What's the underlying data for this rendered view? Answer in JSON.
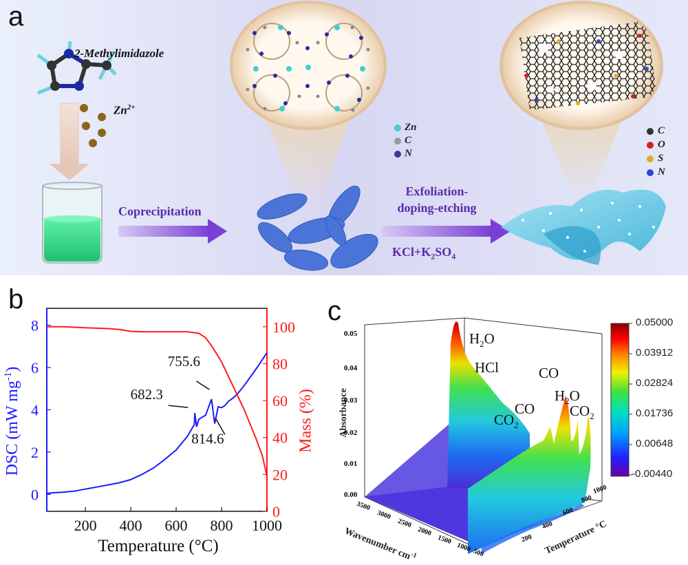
{
  "panel_a": {
    "letter": "a",
    "molecule_label": "2-Methylimidazole",
    "zn_label": "Zn",
    "zn_sup": "2+",
    "step1_label": "Coprecipitation",
    "step2_line1": "Exfoliation-",
    "step2_line2": "doping-etching",
    "salt_label": "KCl+K",
    "salt_sub1": "2",
    "salt_label2": "SO",
    "salt_sub2": "4",
    "zif_legend": [
      {
        "label": "Zn",
        "color": "#3fd0d4"
      },
      {
        "label": "C",
        "color": "#9a9a9a"
      },
      {
        "label": "N",
        "color": "#3a3aa0"
      }
    ],
    "carbon_legend": [
      {
        "label": "C",
        "color": "#333333"
      },
      {
        "label": "O",
        "color": "#d42020"
      },
      {
        "label": "S",
        "color": "#e0b020"
      },
      {
        "label": "N",
        "color": "#2a4ad0"
      }
    ]
  },
  "panel_b": {
    "letter": "b",
    "left_axis_label": "DSC (mW mg",
    "left_axis_sup": "-1",
    "left_axis_close": ")",
    "right_axis_label": "Mass (%)",
    "x_axis_label": "Temperature (°C)",
    "x_ticks": [
      "200",
      "400",
      "600",
      "800",
      "1000"
    ],
    "left_ticks": [
      "0",
      "2",
      "4",
      "6",
      "8"
    ],
    "right_ticks": [
      "0",
      "20",
      "40",
      "60",
      "80",
      "100"
    ],
    "annotations": [
      "682.3",
      "755.6",
      "814.6"
    ],
    "left_color": "#1a1aff",
    "right_color": "#ff1a1a"
  },
  "panel_c": {
    "letter": "c",
    "z_axis_label": "Absorbance",
    "x_axis_label": "Wavenumber cm",
    "x_axis_sup": "-1",
    "y_axis_label": "Temperature °C",
    "z_ticks": [
      "0.00",
      "0.01",
      "0.02",
      "0.03",
      "0.04",
      "0.05"
    ],
    "x_ticks": [
      "3500",
      "3000",
      "2500",
      "2000",
      "1500",
      "1000",
      "500"
    ],
    "y_ticks": [
      "200",
      "400",
      "600",
      "800",
      "1000"
    ],
    "colorbar_ticks": [
      "0.05000",
      "0.03912",
      "0.02824",
      "0.01736",
      "0.00648",
      "-0.00440"
    ],
    "peak_labels": {
      "h2o_1": "H",
      "h2o_1_sub": "2",
      "h2o_1_end": "O",
      "hcl": "HCl",
      "co2_1": "CO",
      "co2_1_sub": "2",
      "co_1": "CO",
      "co_2": "CO",
      "h2o_2": "H",
      "h2o_2_sub": "2",
      "h2o_2_end": "O",
      "co2_2": "CO",
      "co2_2_sub": "2"
    }
  },
  "chart_data": [
    {
      "type": "line",
      "title": "",
      "xlabel": "Temperature (°C)",
      "ylabel": "DSC (mW mg-1)",
      "y2label": "Mass (%)",
      "xlim": [
        30,
        1000
      ],
      "ylim": [
        -0.8,
        8.8
      ],
      "y2lim": [
        0,
        110
      ],
      "series": [
        {
          "name": "DSC",
          "axis": "left",
          "x": [
            30,
            60,
            100,
            150,
            200,
            250,
            300,
            350,
            400,
            450,
            500,
            550,
            600,
            650,
            680,
            682.3,
            690,
            700,
            730,
            755.6,
            770,
            785,
            800,
            814.6,
            830,
            850,
            870,
            900,
            930,
            960,
            1000
          ],
          "y": [
            0.05,
            0.08,
            0.1,
            0.15,
            0.25,
            0.35,
            0.45,
            0.55,
            0.7,
            0.95,
            1.25,
            1.65,
            2.1,
            2.75,
            3.3,
            3.85,
            3.2,
            3.55,
            3.75,
            4.5,
            3.35,
            4.15,
            4.1,
            4.2,
            4.4,
            4.55,
            4.75,
            5.15,
            5.6,
            6.05,
            6.7
          ]
        },
        {
          "name": "Mass",
          "axis": "right",
          "x": [
            30,
            100,
            200,
            300,
            350,
            400,
            450,
            500,
            600,
            650,
            700,
            730,
            760,
            800,
            850,
            900,
            950,
            980,
            1000
          ],
          "y": [
            100,
            100,
            99.5,
            99,
            98.5,
            97.5,
            97.3,
            97.3,
            97.3,
            97.3,
            96.5,
            94,
            89,
            81,
            68,
            55,
            40,
            30,
            19
          ]
        }
      ],
      "annotations": [
        {
          "label": "682.3",
          "x": 682.3
        },
        {
          "label": "755.6",
          "x": 755.6
        },
        {
          "label": "814.6",
          "x": 814.6
        }
      ]
    },
    {
      "type": "heatmap",
      "title": "",
      "xlabel": "Wavenumber cm-1",
      "ylabel": "Temperature °C",
      "zlabel": "Absorbance",
      "xlim": [
        3500,
        500
      ],
      "ylim": [
        0,
        1000
      ],
      "zlim": [
        0,
        0.05
      ],
      "colorbar": [
        -0.0044,
        0.05
      ],
      "peaks": [
        {
          "label": "H2O",
          "wavenumber": 3600,
          "absorbance": 0.055
        },
        {
          "label": "HCl",
          "wavenumber": 2900,
          "absorbance": 0.04
        },
        {
          "label": "CO2",
          "wavenumber": 2350,
          "absorbance": 0.018
        },
        {
          "label": "CO",
          "wavenumber": 2150,
          "absorbance": 0.02
        },
        {
          "label": "CO",
          "wavenumber": 1200,
          "absorbance": 0.035
        },
        {
          "label": "H2O",
          "wavenumber": 1600,
          "absorbance": 0.028
        },
        {
          "label": "CO2",
          "wavenumber": 670,
          "absorbance": 0.025
        }
      ]
    }
  ]
}
